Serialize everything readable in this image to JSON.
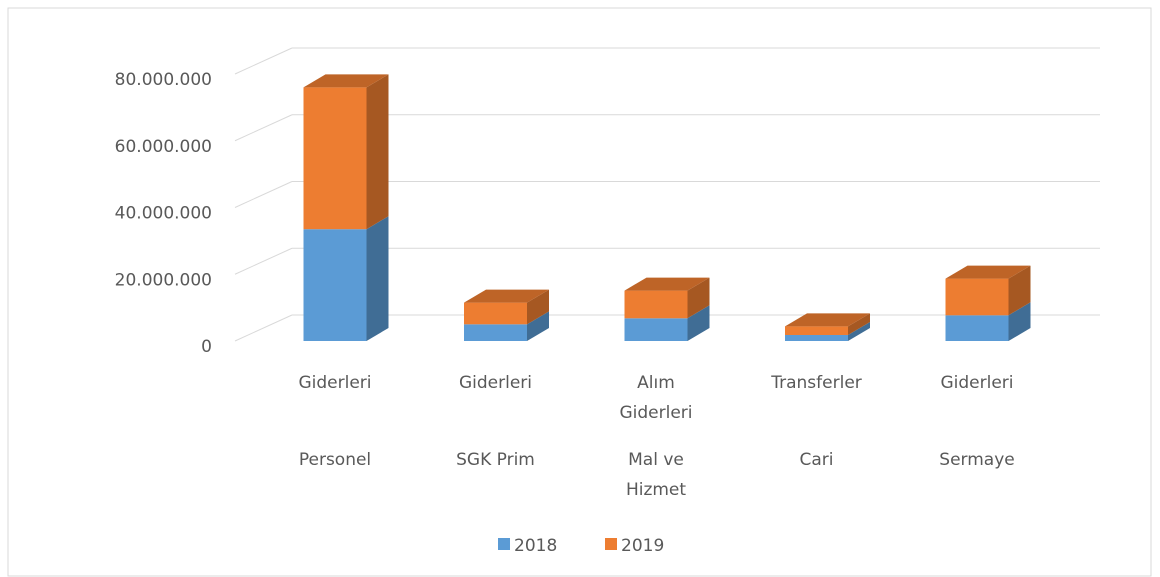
{
  "chart_data": {
    "type": "bar3d_stacked",
    "categories": [
      [
        "Giderleri",
        "Personel"
      ],
      [
        "Giderleri",
        "SGK Prim"
      ],
      [
        "Alım Giderleri",
        "Mal ve Hizmet"
      ],
      [
        "Transferler",
        "Cari"
      ],
      [
        "Giderleri",
        "Sermaye"
      ]
    ],
    "series": [
      {
        "name": "2018",
        "color": "#5b9bd5",
        "values": [
          33500000,
          5000000,
          6800000,
          1800000,
          7700000
        ]
      },
      {
        "name": "2019",
        "color": "#ed7d31",
        "values": [
          42500000,
          6500000,
          8300000,
          2600000,
          11000000
        ]
      }
    ],
    "ylim": [
      0,
      80000000
    ],
    "yticks": [
      0,
      {
        "value": 20000000,
        "label": "20.000.000"
      },
      {
        "value": 40000000,
        "label": "40.000.000"
      },
      {
        "value": 60000000,
        "label": "60.000.000"
      },
      {
        "value": 80000000,
        "label": "80.000.000"
      }
    ],
    "grid": true,
    "legend": "bottom"
  }
}
